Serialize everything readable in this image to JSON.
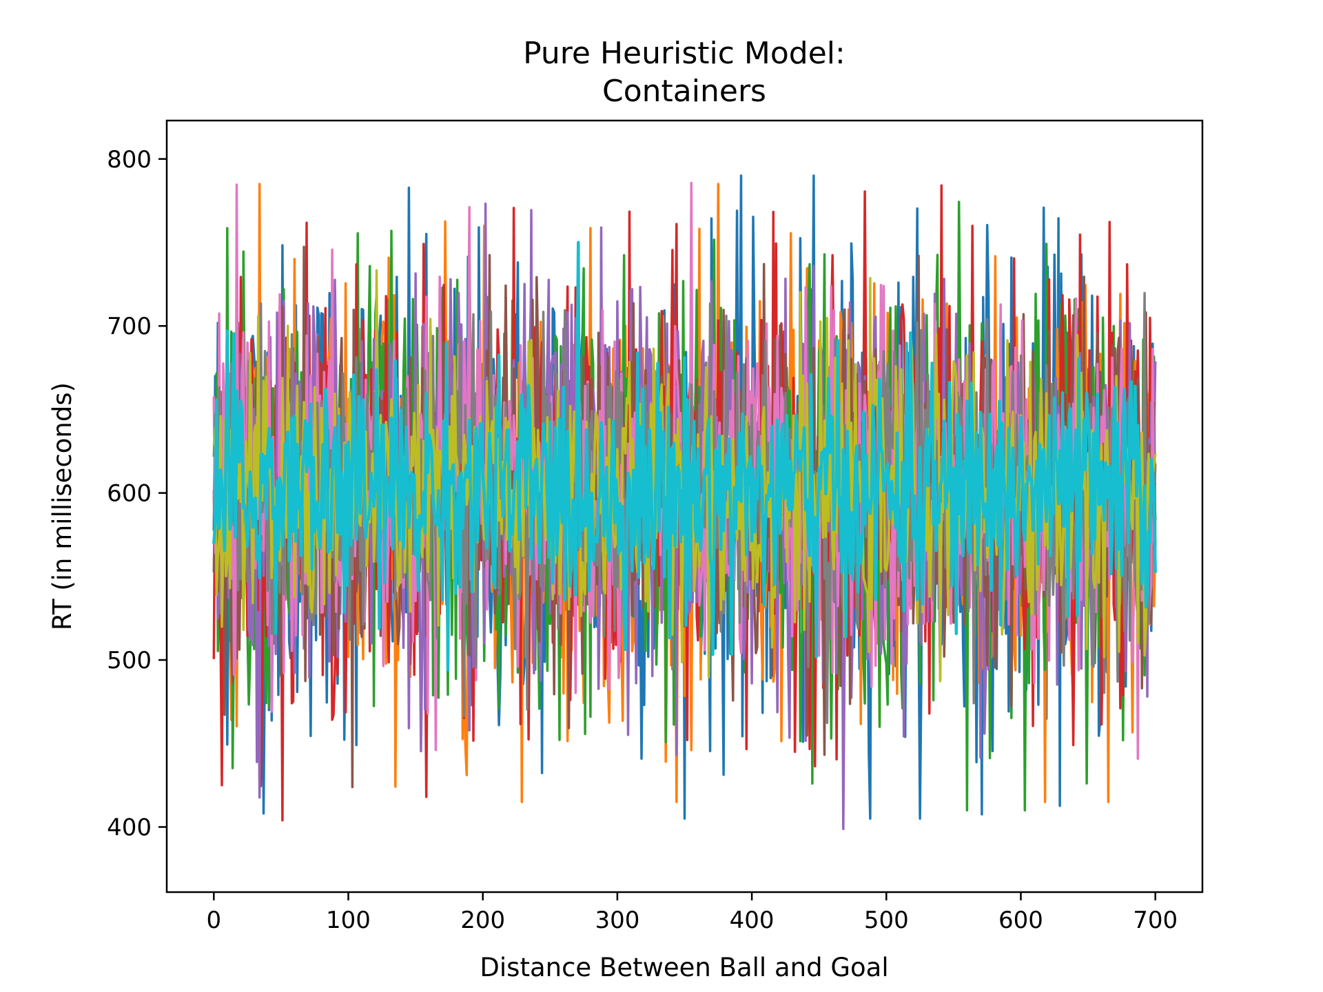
{
  "chart_data": {
    "type": "line",
    "title": [
      "Pure Heuristic Model:",
      "Containers"
    ],
    "xlabel": "Distance Between Ball and Goal",
    "ylabel": "RT (in milliseconds)",
    "xlim": [
      -35,
      735
    ],
    "ylim": [
      361,
      823
    ],
    "xticks": [
      0,
      100,
      200,
      300,
      400,
      500,
      600,
      700
    ],
    "yticks": [
      400,
      500,
      600,
      700,
      800
    ],
    "x_range": [
      0,
      700
    ],
    "grid": false,
    "legend": "none",
    "series_colors": [
      "#1f77b4",
      "#ff7f0e",
      "#2ca02c",
      "#d62728",
      "#9467bd",
      "#8c564b",
      "#e377c2",
      "#7f7f7f",
      "#bcbd22",
      "#17becf"
    ],
    "series_count": 10,
    "series": [
      {
        "values_mean": 600,
        "values_min": 405,
        "values_max": 790
      },
      {
        "values_mean": 600,
        "values_min": 415,
        "values_max": 785
      },
      {
        "values_mean": 600,
        "values_min": 410,
        "values_max": 803
      },
      {
        "values_mean": 600,
        "values_min": 404,
        "values_max": 795
      },
      {
        "values_mean": 600,
        "values_min": 381,
        "values_max": 790
      },
      {
        "values_mean": 600,
        "values_min": 410,
        "values_max": 788
      },
      {
        "values_mean": 600,
        "values_min": 391,
        "values_max": 798
      },
      {
        "values_mean": 600,
        "values_min": 405,
        "values_max": 782
      },
      {
        "values_mean": 600,
        "values_min": 420,
        "values_max": 799
      },
      {
        "values_mean": 600,
        "values_min": 415,
        "values_max": 780
      }
    ]
  }
}
